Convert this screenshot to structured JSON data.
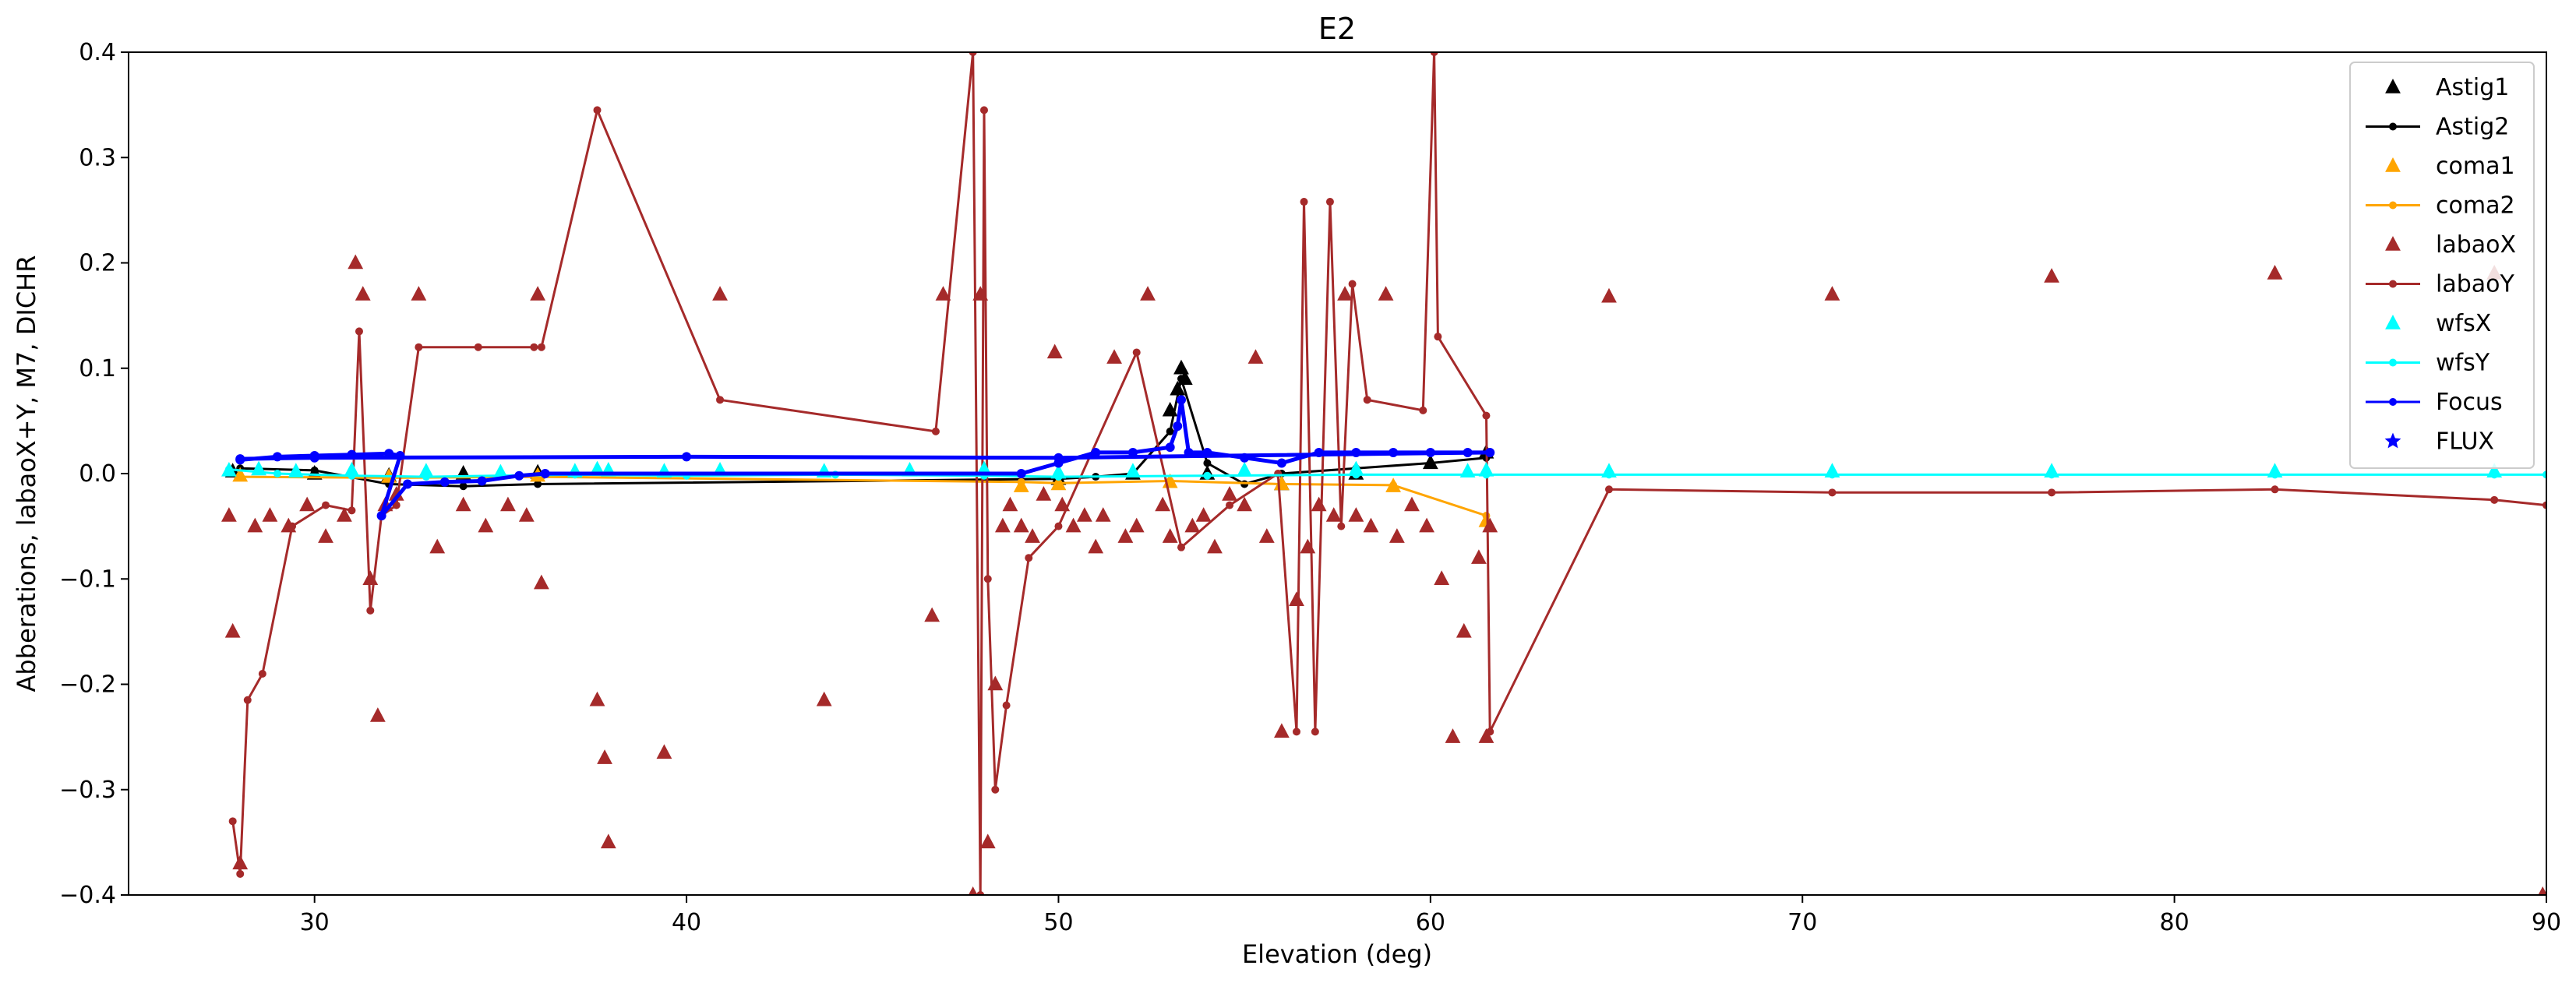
{
  "chart_data": {
    "type": "line",
    "title": "E2",
    "xlabel": "Elevation (deg)",
    "ylabel": "Abberations, labaoX+Y, M7, DICHR",
    "xlim": [
      25,
      90
    ],
    "ylim": [
      -0.4,
      0.4
    ],
    "xticks": [
      30,
      40,
      50,
      60,
      70,
      80,
      90
    ],
    "yticks": [
      -0.4,
      -0.3,
      -0.2,
      -0.1,
      0.0,
      0.1,
      0.2,
      0.3,
      0.4
    ],
    "ytick_labels": [
      "−0.4",
      "−0.3",
      "−0.2",
      "−0.1",
      "0.0",
      "0.1",
      "0.2",
      "0.3",
      "0.4"
    ],
    "grid": false,
    "legend_position": "top-right",
    "series": [
      {
        "name": "Astig1",
        "color": "#000000",
        "marker": "triangle",
        "line": false,
        "x": [
          27.8,
          30,
          32,
          34,
          36,
          50,
          52,
          53,
          53.2,
          53.3,
          53.4,
          54,
          56,
          58,
          60,
          61.5
        ],
        "y": [
          0.002,
          0.0,
          -0.002,
          0.0,
          0.001,
          -0.005,
          0.0,
          0.06,
          0.08,
          0.1,
          0.09,
          0.0,
          -0.01,
          0.0,
          0.01,
          0.02
        ]
      },
      {
        "name": "Astig2",
        "color": "#000000",
        "marker": "dot",
        "line": true,
        "x": [
          28,
          30,
          32,
          34,
          36,
          50,
          51,
          52,
          53,
          53.3,
          54,
          55,
          56,
          58,
          60,
          61.5
        ],
        "y": [
          0.005,
          0.003,
          -0.01,
          -0.012,
          -0.01,
          -0.005,
          -0.003,
          0.0,
          0.04,
          0.09,
          0.01,
          -0.01,
          0.0,
          0.005,
          0.01,
          0.015
        ]
      },
      {
        "name": "coma1",
        "color": "#ffa500",
        "marker": "triangle",
        "line": false,
        "x": [
          28,
          32,
          36,
          49,
          50,
          53,
          56,
          59,
          61.5
        ],
        "y": [
          -0.002,
          -0.003,
          -0.002,
          -0.012,
          -0.01,
          -0.008,
          -0.01,
          -0.012,
          -0.045
        ]
      },
      {
        "name": "coma2",
        "color": "#ffa500",
        "marker": "dot",
        "line": true,
        "x": [
          28,
          32,
          36,
          49,
          50,
          53,
          56,
          59,
          61.5
        ],
        "y": [
          -0.003,
          -0.004,
          -0.003,
          -0.008,
          -0.009,
          -0.007,
          -0.01,
          -0.011,
          -0.04
        ]
      },
      {
        "name": "labaoX",
        "color": "#a52a2a",
        "marker": "triangle",
        "line": false,
        "x": [
          27.7,
          27.8,
          28,
          28.4,
          28.8,
          29.3,
          29.8,
          30.3,
          30.8,
          31.1,
          31.3,
          31.5,
          31.7,
          31.9,
          32.2,
          32.8,
          33.3,
          34,
          34.6,
          35.2,
          35.7,
          36,
          36.1,
          37.6,
          37.8,
          37.9,
          39.4,
          40.9,
          43.7,
          46.6,
          46.9,
          47.7,
          47.9,
          48.1,
          48.3,
          48.5,
          48.7,
          49.0,
          49.3,
          49.6,
          49.9,
          50.1,
          50.4,
          50.7,
          51.0,
          51.2,
          51.5,
          51.8,
          52.1,
          52.4,
          52.8,
          53.0,
          53.6,
          53.9,
          54.2,
          54.6,
          55.0,
          55.3,
          55.6,
          56.0,
          56.4,
          56.7,
          57.0,
          57.4,
          57.7,
          58.0,
          58.4,
          58.8,
          59.1,
          59.5,
          59.9,
          60.3,
          60.6,
          60.9,
          61.3,
          61.5,
          61.6,
          64.8,
          70.8,
          76.7,
          82.7,
          88.6,
          89.9
        ],
        "y": [
          -0.04,
          -0.15,
          -0.37,
          -0.05,
          -0.04,
          -0.05,
          -0.03,
          -0.06,
          -0.04,
          0.2,
          0.17,
          -0.1,
          -0.23,
          -0.03,
          -0.02,
          0.17,
          -0.07,
          -0.03,
          -0.05,
          -0.03,
          -0.04,
          0.17,
          -0.104,
          -0.215,
          -0.27,
          -0.35,
          -0.265,
          0.17,
          -0.215,
          -0.135,
          0.17,
          -0.4,
          0.17,
          -0.35,
          -0.2,
          -0.05,
          -0.03,
          -0.05,
          -0.06,
          -0.02,
          0.115,
          -0.03,
          -0.05,
          -0.04,
          -0.07,
          -0.04,
          0.11,
          -0.06,
          -0.05,
          0.17,
          -0.03,
          -0.06,
          -0.05,
          -0.04,
          -0.07,
          -0.02,
          -0.03,
          0.11,
          -0.06,
          -0.245,
          -0.12,
          -0.07,
          -0.03,
          -0.04,
          0.17,
          -0.04,
          -0.05,
          0.17,
          -0.06,
          -0.03,
          -0.05,
          -0.1,
          -0.25,
          -0.15,
          -0.08,
          -0.25,
          -0.05,
          0.168,
          0.17,
          0.187,
          0.19,
          0.19,
          -0.4
        ]
      },
      {
        "name": "labaoY",
        "color": "#a52a2a",
        "marker": "dot",
        "line": true,
        "x": [
          27.8,
          28.0,
          28.2,
          28.6,
          29.4,
          30.3,
          31.0,
          31.2,
          31.5,
          31.8,
          32.2,
          32.8,
          34.4,
          35.9,
          36.1,
          37.6,
          40.9,
          46.7,
          47.7,
          47.9,
          48.0,
          48.1,
          48.3,
          48.6,
          49.2,
          50.0,
          52.1,
          53.3,
          54.6,
          55.9,
          56.4,
          56.6,
          56.9,
          57.3,
          57.6,
          57.9,
          58.3,
          59.8,
          60.1,
          60.2,
          61.5,
          61.6,
          64.8,
          70.8,
          76.7,
          82.7,
          88.6,
          90
        ],
        "y": [
          -0.33,
          -0.38,
          -0.215,
          -0.19,
          -0.05,
          -0.03,
          -0.035,
          0.135,
          -0.13,
          -0.04,
          -0.03,
          0.12,
          0.12,
          0.12,
          0.12,
          0.345,
          0.07,
          0.04,
          0.4,
          -0.4,
          0.345,
          -0.1,
          -0.3,
          -0.22,
          -0.08,
          -0.05,
          0.115,
          -0.07,
          -0.03,
          0.0,
          -0.245,
          0.258,
          -0.245,
          0.258,
          -0.05,
          0.18,
          0.07,
          0.06,
          0.4,
          0.13,
          0.055,
          -0.245,
          -0.015,
          -0.018,
          -0.018,
          -0.015,
          -0.025,
          -0.03
        ]
      },
      {
        "name": "wfsX",
        "color": "#00ffff",
        "marker": "triangle",
        "line": false,
        "x": [
          27.7,
          28.5,
          29.5,
          31,
          33,
          35,
          37,
          37.6,
          37.9,
          39.4,
          40.9,
          43.7,
          46,
          48,
          50,
          52,
          55,
          58,
          61,
          61.5,
          64.8,
          70.8,
          76.7,
          82.7,
          88.6
        ],
        "y": [
          0.003,
          0.004,
          0.002,
          0.003,
          0.002,
          0.001,
          0.002,
          0.004,
          0.003,
          0.002,
          0.003,
          0.002,
          0.003,
          0.004,
          0.001,
          0.002,
          0.003,
          0.004,
          0.002,
          0.003,
          0.002,
          0.002,
          0.002,
          0.002,
          0.002
        ]
      },
      {
        "name": "wfsY",
        "color": "#00ffff",
        "marker": "dot",
        "line": true,
        "x": [
          27.7,
          29,
          31,
          33,
          35,
          37,
          40,
          44,
          48,
          50,
          54,
          58,
          61.5,
          64.8,
          70.8,
          76.7,
          82.7,
          88.6,
          90
        ],
        "y": [
          0.004,
          0.0,
          -0.002,
          -0.003,
          -0.002,
          -0.001,
          -0.002,
          -0.001,
          -0.002,
          -0.003,
          -0.002,
          -0.001,
          -0.001,
          -0.001,
          -0.001,
          -0.001,
          -0.001,
          -0.001,
          -0.001
        ]
      },
      {
        "name": "Focus",
        "color": "#0000ff",
        "marker": "dot",
        "line": true,
        "x": [
          28.0,
          29.0,
          30.0,
          31.0,
          32.0,
          32.3,
          31.8,
          32.5,
          33.5,
          34.5,
          35.5,
          36.2,
          49.0,
          50.0,
          51.0,
          52.0,
          53.0,
          53.2,
          53.3,
          53.5,
          54.0,
          55.0,
          56.0,
          57.0,
          58.0,
          59.0,
          60.0,
          61.0,
          61.6,
          50.0,
          40.0,
          30.0,
          28.0
        ],
        "y": [
          0.013,
          0.016,
          0.017,
          0.018,
          0.019,
          0.017,
          -0.04,
          -0.01,
          -0.008,
          -0.007,
          -0.002,
          0.0,
          0.0,
          0.01,
          0.02,
          0.02,
          0.025,
          0.045,
          0.07,
          0.02,
          0.02,
          0.015,
          0.01,
          0.02,
          0.02,
          0.02,
          0.02,
          0.02,
          0.02,
          0.015,
          0.016,
          0.015,
          0.014
        ]
      },
      {
        "name": "FLUX",
        "color": "#0000ff",
        "marker": "star",
        "line": false,
        "x": [],
        "y": []
      }
    ]
  }
}
